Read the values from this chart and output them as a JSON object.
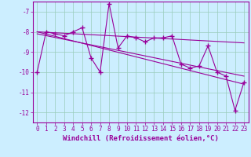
{
  "x": [
    0,
    1,
    2,
    3,
    4,
    5,
    6,
    7,
    8,
    9,
    10,
    11,
    12,
    13,
    14,
    15,
    16,
    17,
    18,
    19,
    20,
    21,
    22,
    23
  ],
  "y_main": [
    -10,
    -8,
    -8.1,
    -8.2,
    -8,
    -7.8,
    -9.3,
    -10,
    -6.6,
    -8.8,
    -8.2,
    -8.3,
    -8.5,
    -8.3,
    -8.3,
    -8.2,
    -9.6,
    -9.8,
    -9.7,
    -8.7,
    -10,
    -10.2,
    -11.9,
    -10.5
  ],
  "trend1_x": [
    0,
    23
  ],
  "trend1_y": [
    -8.0,
    -8.55
  ],
  "trend2_x": [
    0,
    23
  ],
  "trend2_y": [
    -8.1,
    -10.2
  ],
  "trend3_x": [
    0,
    23
  ],
  "trend3_y": [
    -8.0,
    -10.6
  ],
  "xlim": [
    -0.5,
    23.5
  ],
  "ylim": [
    -12.5,
    -6.5
  ],
  "yticks": [
    -7,
    -8,
    -9,
    -10,
    -11,
    -12
  ],
  "xticks": [
    0,
    1,
    2,
    3,
    4,
    5,
    6,
    7,
    8,
    9,
    10,
    11,
    12,
    13,
    14,
    15,
    16,
    17,
    18,
    19,
    20,
    21,
    22,
    23
  ],
  "xlabel": "Windchill (Refroidissement éolien,°C)",
  "bg_color": "#cceeff",
  "line_color": "#990099",
  "grid_color": "#99ccbb",
  "marker": "+",
  "markersize": 4,
  "linewidth": 0.8,
  "xlabel_fontsize": 6.5,
  "tick_fontsize": 5.5
}
